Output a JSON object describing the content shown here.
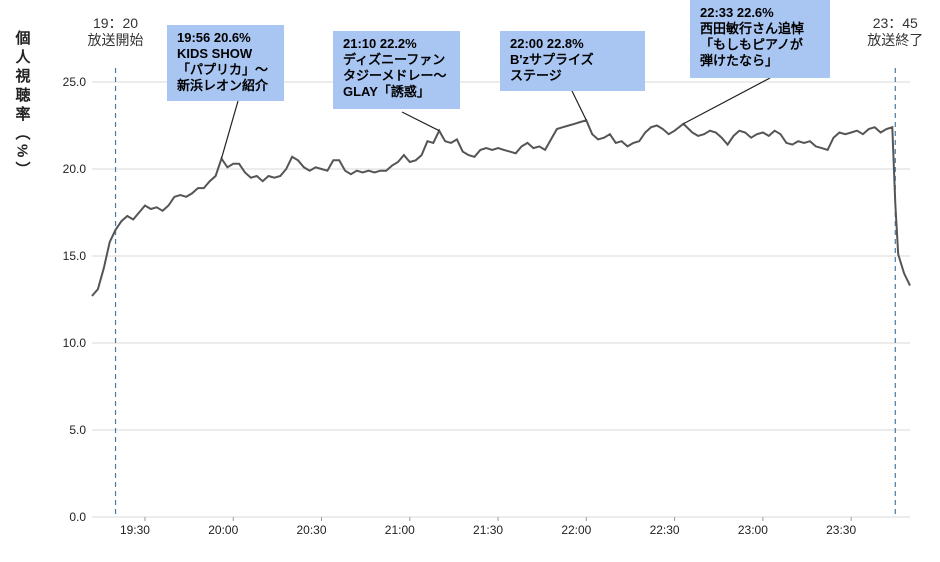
{
  "chart_data": {
    "type": "line",
    "y_label": "個人視聴率（%）",
    "color": "#555555",
    "x": [
      "19:12",
      "19:14",
      "19:16",
      "19:18",
      "19:20",
      "19:22",
      "19:24",
      "19:26",
      "19:28",
      "19:30",
      "19:32",
      "19:34",
      "19:36",
      "19:38",
      "19:40",
      "19:42",
      "19:44",
      "19:46",
      "19:48",
      "19:50",
      "19:52",
      "19:54",
      "19:56",
      "19:58",
      "20:00",
      "20:02",
      "20:04",
      "20:06",
      "20:08",
      "20:10",
      "20:12",
      "20:14",
      "20:16",
      "20:18",
      "20:20",
      "20:22",
      "20:24",
      "20:26",
      "20:28",
      "20:30",
      "20:32",
      "20:34",
      "20:36",
      "20:38",
      "20:40",
      "20:42",
      "20:44",
      "20:46",
      "20:48",
      "20:50",
      "20:52",
      "20:54",
      "20:56",
      "20:58",
      "21:00",
      "21:02",
      "21:04",
      "21:06",
      "21:08",
      "21:10",
      "21:12",
      "21:14",
      "21:16",
      "21:18",
      "21:20",
      "21:22",
      "21:24",
      "21:26",
      "21:28",
      "21:30",
      "21:32",
      "21:34",
      "21:36",
      "21:38",
      "21:40",
      "21:42",
      "21:44",
      "21:46",
      "21:48",
      "21:50",
      "21:52",
      "21:54",
      "21:56",
      "21:58",
      "22:00",
      "22:02",
      "22:04",
      "22:06",
      "22:08",
      "22:10",
      "22:12",
      "22:14",
      "22:16",
      "22:18",
      "22:20",
      "22:22",
      "22:24",
      "22:26",
      "22:28",
      "22:30",
      "22:33",
      "22:36",
      "22:38",
      "22:40",
      "22:42",
      "22:44",
      "22:46",
      "22:48",
      "22:50",
      "22:52",
      "22:54",
      "22:56",
      "22:58",
      "23:00",
      "23:02",
      "23:04",
      "23:06",
      "23:08",
      "23:10",
      "23:12",
      "23:14",
      "23:16",
      "23:18",
      "23:20",
      "23:22",
      "23:24",
      "23:26",
      "23:28",
      "23:30",
      "23:32",
      "23:34",
      "23:36",
      "23:38",
      "23:40",
      "23:42",
      "23:44",
      "23:45",
      "23:46",
      "23:48",
      "23:50"
    ],
    "values": [
      12.7,
      13.1,
      14.3,
      15.8,
      16.5,
      17.0,
      17.3,
      17.1,
      17.5,
      17.9,
      17.7,
      17.8,
      17.6,
      17.9,
      18.4,
      18.5,
      18.4,
      18.6,
      18.9,
      18.9,
      19.3,
      19.6,
      20.6,
      20.1,
      20.3,
      20.3,
      19.8,
      19.5,
      19.6,
      19.3,
      19.6,
      19.5,
      19.6,
      20.0,
      20.7,
      20.5,
      20.1,
      19.9,
      20.1,
      20.0,
      19.9,
      20.5,
      20.5,
      19.9,
      19.7,
      19.9,
      19.8,
      19.9,
      19.8,
      19.9,
      19.9,
      20.2,
      20.4,
      20.8,
      20.4,
      20.5,
      20.8,
      21.6,
      21.5,
      22.2,
      21.6,
      21.5,
      21.7,
      21.0,
      20.8,
      20.7,
      21.1,
      21.2,
      21.1,
      21.2,
      21.1,
      21.0,
      20.9,
      21.3,
      21.5,
      21.2,
      21.3,
      21.1,
      21.7,
      22.3,
      22.4,
      22.5,
      22.6,
      22.7,
      22.8,
      22.0,
      21.7,
      21.8,
      22.0,
      21.5,
      21.6,
      21.3,
      21.5,
      21.6,
      22.1,
      22.4,
      22.5,
      22.3,
      22.0,
      22.2,
      22.6,
      22.1,
      21.9,
      22.0,
      22.2,
      22.1,
      21.8,
      21.4,
      21.9,
      22.2,
      22.1,
      21.8,
      22.0,
      22.1,
      21.9,
      22.2,
      22.0,
      21.5,
      21.4,
      21.6,
      21.5,
      21.6,
      21.3,
      21.2,
      21.1,
      21.8,
      22.1,
      22.0,
      22.1,
      22.2,
      22.0,
      22.3,
      22.4,
      22.1,
      22.3,
      22.4,
      18.0,
      15.1,
      14.0,
      13.3
    ],
    "xlim": [
      "19:12",
      "23:50"
    ],
    "xticks": [
      "19:30",
      "20:00",
      "20:30",
      "21:00",
      "21:30",
      "22:00",
      "22:30",
      "23:00",
      "23:30"
    ],
    "ylim": [
      0,
      25
    ],
    "yticks": [
      {
        "value": 0,
        "label": "0.0"
      },
      {
        "value": 5,
        "label": "5.0"
      },
      {
        "value": 10,
        "label": "10.0"
      },
      {
        "value": 15,
        "label": "15.0"
      },
      {
        "value": 20,
        "label": "20.0"
      },
      {
        "value": 25,
        "label": "25.0"
      }
    ],
    "grid": true,
    "markers": [
      {
        "x": "19:20",
        "lines": [
          "19：20",
          "放送開始"
        ]
      },
      {
        "x": "23:45",
        "lines": [
          "23：45",
          "放送終了"
        ]
      }
    ],
    "annotations": [
      {
        "x": "19:56",
        "lines": [
          "19:56  20.6%",
          "KIDS SHOW",
          "「パプリカ」～",
          "新浜レオン紹介"
        ]
      },
      {
        "x": "21:10",
        "lines": [
          "21:10  22.2%",
          "ディズニーファン",
          "タジーメドレー～",
          "GLAY「誘惑」"
        ]
      },
      {
        "x": "22:00",
        "lines": [
          "22:00  22.8%",
          "B'zサプライズ",
          "ステージ"
        ]
      },
      {
        "x": "22:33",
        "lines": [
          "22:33  22.6%",
          "西田敏行さん追悼",
          "「もしもピアノが",
          "弾けたなら」"
        ]
      }
    ]
  }
}
